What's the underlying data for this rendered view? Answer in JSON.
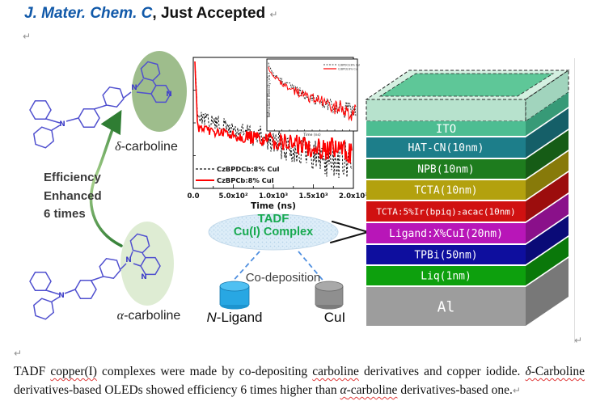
{
  "header": {
    "journal_title": "J. Mater. Chem. C",
    "status_suffix": ", Just Accepted"
  },
  "marks": {
    "pilcrow": "↵"
  },
  "colors": {
    "journal_blue": "#1159a9",
    "tadf_green": "#17a94f",
    "arrow_green": "#2f7d33",
    "dashed_blue": "#4f8fe0",
    "ligand_cylinder": "#28a7e3",
    "cui_cylinder": "#8f8f8f",
    "bond_blue": "#5050cf",
    "delta_ellipse": "#93b67f",
    "alpha_ellipse": "#dcebd1"
  },
  "molecules": {
    "atom_label": "N",
    "delta_greek": "δ",
    "alpha_greek": "α",
    "carboline_word": "-carboline",
    "efficiency_lines": [
      "Efficiency",
      "Enhanced",
      "6 times"
    ]
  },
  "chart_data": {
    "type": "line",
    "title": "",
    "xlabel": "Time (ns)",
    "ylabel": "",
    "x_tick_labels": [
      "0.0",
      "5.0x10²",
      "1.0x10³",
      "1.5x10³",
      "2.0x10³"
    ],
    "xlim": [
      0,
      2000
    ],
    "yscale": "log",
    "grid": false,
    "legend_position": "lower left",
    "series": [
      {
        "name": "CzBPDCb:8% CuI",
        "color": "#111111",
        "line": "dashed",
        "level_start": 0.44,
        "level_end": 0.82,
        "noise_start": 0.04,
        "noise_end": 0.17
      },
      {
        "name": "CzBPCb:8% CuI",
        "color": "#ff0000",
        "line": "solid",
        "level_start": 0.54,
        "level_end": 0.72,
        "noise_start": 0.025,
        "noise_end": 0.1
      }
    ],
    "inset": {
      "ylabel": "Normalized Intensity (a.u.)",
      "xlabel": "Time (ns)",
      "yscale": "log"
    }
  },
  "tadf": {
    "line1": "TADF",
    "line2": "Cu(I) Complex"
  },
  "codeposition": {
    "label": "Co-deposition",
    "ligand_prefix": "N",
    "ligand_suffix": "-Ligand",
    "cui_label": "CuI"
  },
  "device_stack": {
    "glass": {
      "label": "ITO",
      "top": "#cfeede",
      "inner": "#57c494",
      "front": "#aaddc4",
      "side": "#90ccb1",
      "ito_front": "#4dbd92",
      "ito_side": "#379a77"
    },
    "layers": [
      {
        "label": "HAT-CN(10nm)",
        "front": "#1d7e8a",
        "side": "#155f68",
        "h": 25,
        "fs": 13
      },
      {
        "label": "NPB(10nm)",
        "front": "#1e7c1e",
        "side": "#165c16",
        "h": 24,
        "fs": 13
      },
      {
        "label": "TCTA(10nm)",
        "front": "#b3a10e",
        "side": "#877a0a",
        "h": 24,
        "fs": 13
      },
      {
        "label": "TCTA:5%Ir(bpiq)₂acac(10nm)",
        "front": "#d01111",
        "side": "#9c0d0d",
        "h": 25,
        "fs": 11
      },
      {
        "label": "Ligand:X%CuI(20nm)",
        "front": "#b816b8",
        "side": "#8a108a",
        "h": 25,
        "fs": 13
      },
      {
        "label": "TPBi(50nm)",
        "front": "#0e0e9e",
        "side": "#0a0a77",
        "h": 24,
        "fs": 13
      },
      {
        "label": "Liq(1nm)",
        "front": "#0da00d",
        "side": "#0a780a",
        "h": 24,
        "fs": 13
      },
      {
        "label": "Al",
        "front": "#9d9d9d",
        "side": "#787878",
        "h": 48,
        "fs": 18
      }
    ]
  },
  "caption": {
    "segments": [
      {
        "t": "TADF "
      },
      {
        "t": "copper(I)",
        "u": 1
      },
      {
        "t": " complexes were made by co-depositing "
      },
      {
        "t": "carboline",
        "u": 1
      },
      {
        "t": " derivatives and copper iodide. "
      },
      {
        "t": "δ",
        "u": 1,
        "i": 1
      },
      {
        "t": "-Carboline",
        "u": 1
      },
      {
        "t": " derivatives-based OLEDs showed efficiency 6 times higher than "
      },
      {
        "t": "α",
        "u": 1,
        "i": 1
      },
      {
        "t": "-carboline",
        "u": 1
      },
      {
        "t": " derivatives-based one."
      },
      {
        "t": "↵",
        "p": 1
      }
    ]
  }
}
